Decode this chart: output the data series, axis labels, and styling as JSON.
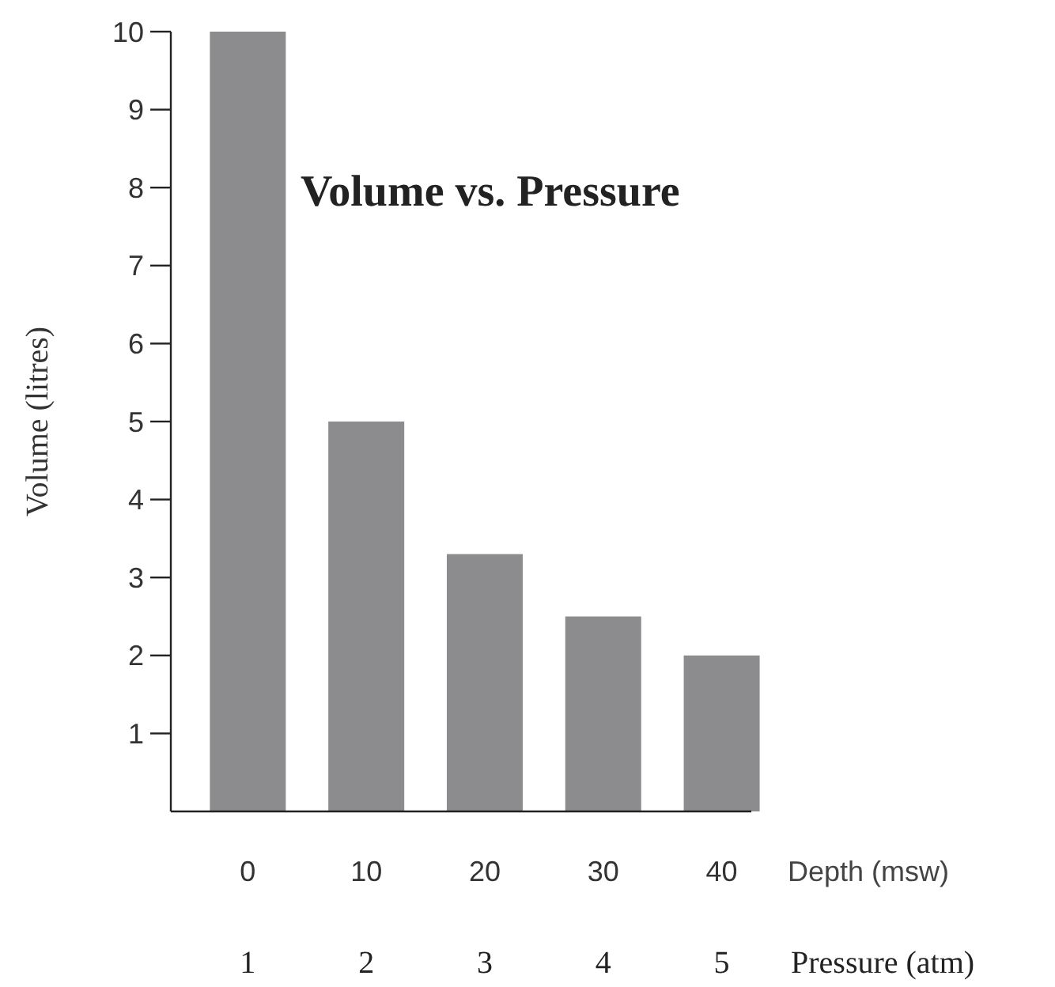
{
  "chart_data": {
    "type": "bar",
    "title": "Volume vs. Pressure",
    "xlabel": "Depth (msw)",
    "ylabel": "Volume (litres)",
    "x2label": "Pressure (atm)",
    "x": [
      0,
      10,
      20,
      30,
      40
    ],
    "values": [
      10,
      5,
      3.3,
      2.5,
      2
    ],
    "color": "#8c8c8e",
    "xlim": [
      -6.5,
      42.5
    ],
    "xticks": [
      0,
      10,
      20,
      30,
      40
    ],
    "x2lim": [
      0.35,
      5.25
    ],
    "x2ticks": [
      1,
      2,
      3,
      4,
      5
    ],
    "ylim": [
      0,
      10
    ],
    "yticks": [
      1,
      2,
      3,
      4,
      5,
      6,
      7,
      8,
      9,
      10
    ]
  }
}
